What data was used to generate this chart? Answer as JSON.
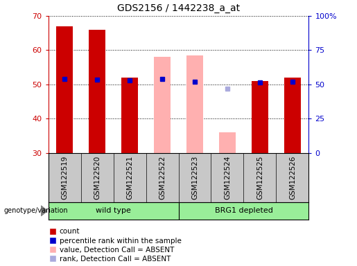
{
  "title": "GDS2156 / 1442238_a_at",
  "samples": [
    "GSM122519",
    "GSM122520",
    "GSM122521",
    "GSM122522",
    "GSM122523",
    "GSM122524",
    "GSM122525",
    "GSM122526"
  ],
  "count_values": [
    67.0,
    66.0,
    52.0,
    null,
    null,
    null,
    51.0,
    52.0
  ],
  "rank_values": [
    54.0,
    53.5,
    53.0,
    54.0,
    52.0,
    null,
    51.5,
    52.0
  ],
  "absent_value": [
    null,
    null,
    null,
    58.0,
    58.5,
    36.0,
    null,
    null
  ],
  "absent_rank": [
    null,
    null,
    null,
    null,
    null,
    47.0,
    null,
    null
  ],
  "ylim_left": [
    30,
    70
  ],
  "ylim_right": [
    0,
    100
  ],
  "yticks_left": [
    30,
    40,
    50,
    60,
    70
  ],
  "yticks_right": [
    0,
    25,
    50,
    75,
    100
  ],
  "ytick_labels_right": [
    "0",
    "25",
    "50",
    "75",
    "100%"
  ],
  "group_labels": [
    "wild type",
    "BRG1 depleted"
  ],
  "bar_width": 0.5,
  "color_red": "#cc0000",
  "color_blue": "#0000cc",
  "color_pink": "#ffb0b0",
  "color_light_blue": "#aaaadd",
  "color_green": "#99ee99",
  "color_gray_bg": "#c8c8c8",
  "axis_color_left": "#cc0000",
  "axis_color_right": "#0000cc",
  "genotype_label": "genotype/variation",
  "legend_labels": [
    "count",
    "percentile rank within the sample",
    "value, Detection Call = ABSENT",
    "rank, Detection Call = ABSENT"
  ]
}
